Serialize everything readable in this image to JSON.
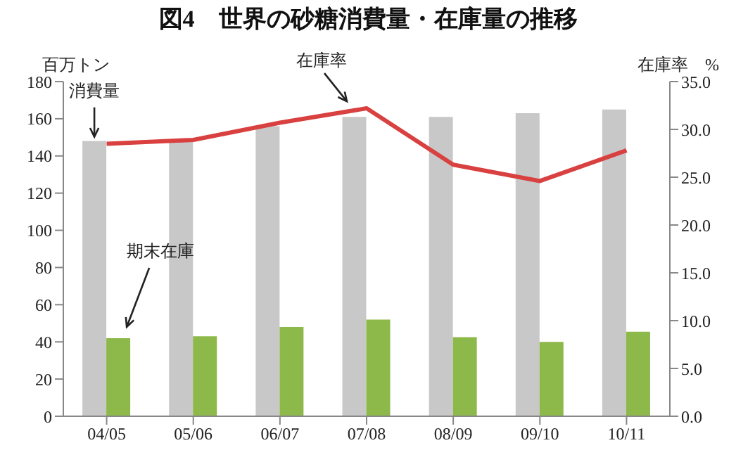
{
  "chart_data": {
    "type": "bar",
    "title": "図4　世界の砂糖消費量・在庫量の推移",
    "ylabel": "百万トン",
    "y2label": "在庫率　%",
    "categories": [
      "04/05",
      "05/06",
      "06/07",
      "07/08",
      "08/09",
      "09/10",
      "10/11"
    ],
    "series": [
      {
        "name": "消費量",
        "color": "#c8c8c8",
        "values": [
          148,
          148,
          156,
          161,
          161,
          163,
          165
        ]
      },
      {
        "name": "期末在庫",
        "color": "#8db84a",
        "values": [
          42,
          43,
          48,
          52,
          42.5,
          40,
          45.5
        ]
      },
      {
        "name": "在庫率",
        "type": "line",
        "axis": "y2",
        "color": "#d94040",
        "values": [
          28.5,
          28.9,
          30.7,
          32.2,
          26.3,
          24.6,
          27.8
        ]
      }
    ],
    "ylim": [
      0,
      180
    ],
    "yticks": [
      0,
      20,
      40,
      60,
      80,
      100,
      120,
      140,
      160,
      180
    ],
    "y2lim": [
      0,
      35
    ],
    "y2ticks": [
      {
        "value": 0,
        "label": "0.0"
      },
      {
        "value": 5,
        "label": "5.0"
      },
      {
        "value": 10,
        "label": "10.0"
      },
      {
        "value": 15,
        "label": "15.0"
      },
      {
        "value": 20,
        "label": "20.0"
      },
      {
        "value": 25,
        "label": "25.0"
      },
      {
        "value": 30,
        "label": "30.0"
      },
      {
        "value": 35,
        "label": "35.0"
      }
    ],
    "grid": false,
    "legend": false,
    "marker": "none",
    "line_style": "solid"
  }
}
